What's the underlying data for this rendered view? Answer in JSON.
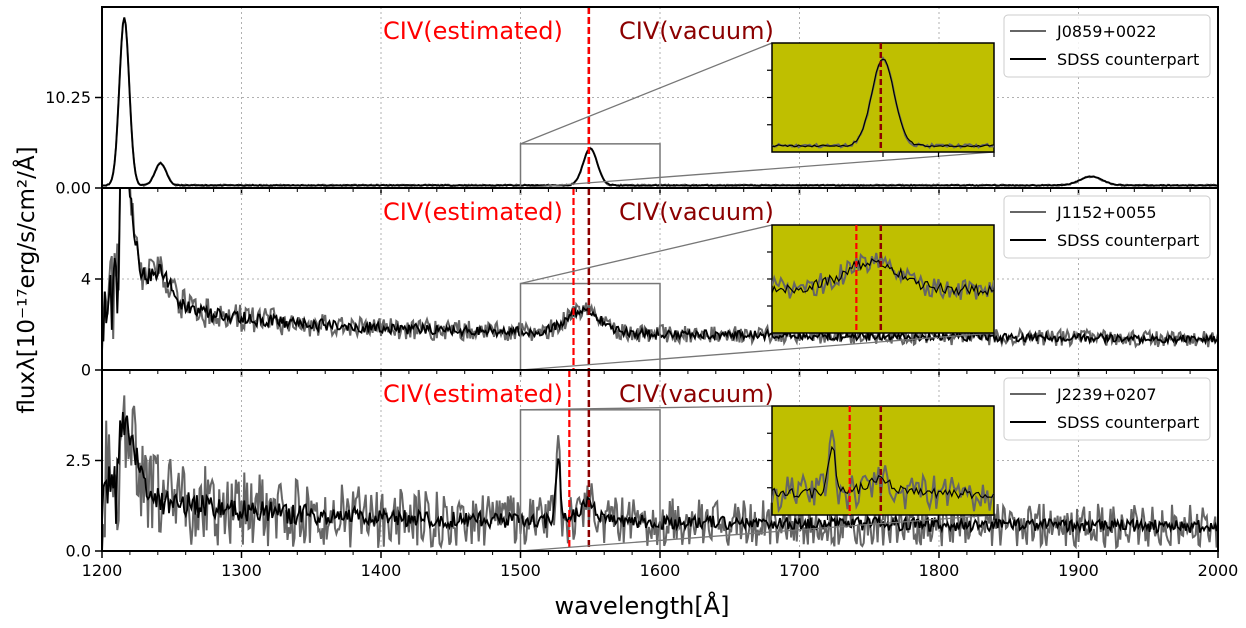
{
  "figure": {
    "xlabel": "wavelength[Å]",
    "ylabel": "fluxλ[10⁻¹⁷erg/s/cm²/Å]",
    "xticks": [
      "1200",
      "1300",
      "1400",
      "1500",
      "1600",
      "1700",
      "1800",
      "1900",
      "2000"
    ],
    "civ_estimated_label": "CIV(estimated)",
    "civ_vacuum_label": "CIV(vacuum)",
    "colors": {
      "target": "#666666",
      "sdss": "#000000",
      "estimated": "#ff0000",
      "vacuum": "#8b0000",
      "inset_bg": "#bfbf00"
    }
  },
  "chart_data": [
    {
      "type": "line",
      "panel": "top",
      "xlim": [
        1200,
        2000
      ],
      "ylim": [
        0,
        20.5
      ],
      "yticks": [
        0.0,
        10.25
      ],
      "ytick_labels": [
        "0.00",
        "10.25"
      ],
      "legend": [
        "J0859+0022",
        "SDSS counterpart"
      ],
      "legend_position": "top-right",
      "civ_vacuum": 1549,
      "civ_estimated": 1549,
      "zoom_window": {
        "x": [
          1500,
          1600
        ],
        "y": [
          0,
          5
        ]
      },
      "features": [
        {
          "x": 1216,
          "y": 19.0,
          "w": 3.5
        },
        {
          "x": 1242,
          "y": 2.5,
          "w": 4
        },
        {
          "x": 1550,
          "y": 4.2,
          "w": 5
        },
        {
          "x": 1909,
          "y": 1.0,
          "w": 8
        }
      ],
      "base": 0.3
    },
    {
      "type": "line",
      "panel": "middle",
      "xlim": [
        1200,
        2000
      ],
      "ylim": [
        0,
        8
      ],
      "yticks": [
        0,
        4
      ],
      "ytick_labels": [
        "0",
        "4"
      ],
      "legend": [
        "J1152+0055",
        "SDSS counterpart"
      ],
      "legend_position": "top-right",
      "civ_vacuum": 1549,
      "civ_estimated": 1538,
      "zoom_window": {
        "x": [
          1500,
          1600
        ],
        "y": [
          0,
          3.8
        ]
      },
      "features": [
        {
          "x": 1216,
          "y": 5.5,
          "w": 6
        },
        {
          "x": 1240,
          "y": 1.5,
          "w": 10
        },
        {
          "x": 1545,
          "y": 1.0,
          "w": 12
        }
      ],
      "base": 1.8
    },
    {
      "type": "line",
      "panel": "bottom",
      "xlim": [
        1200,
        2000
      ],
      "ylim": [
        0,
        5
      ],
      "yticks": [
        0.0,
        2.5
      ],
      "ytick_labels": [
        "0.0",
        "2.5"
      ],
      "legend": [
        "J2239+0207",
        "SDSS counterpart"
      ],
      "legend_position": "top-right",
      "civ_vacuum": 1549,
      "civ_estimated": 1535,
      "zoom_window": {
        "x": [
          1500,
          1600
        ],
        "y": [
          0,
          3.9
        ]
      },
      "features": [
        {
          "x": 1216,
          "y": 2.0,
          "w": 8
        },
        {
          "x": 1527,
          "y": 1.8,
          "w": 1.5
        },
        {
          "x": 1548,
          "y": 0.5,
          "w": 6
        }
      ],
      "base": 0.9
    }
  ]
}
